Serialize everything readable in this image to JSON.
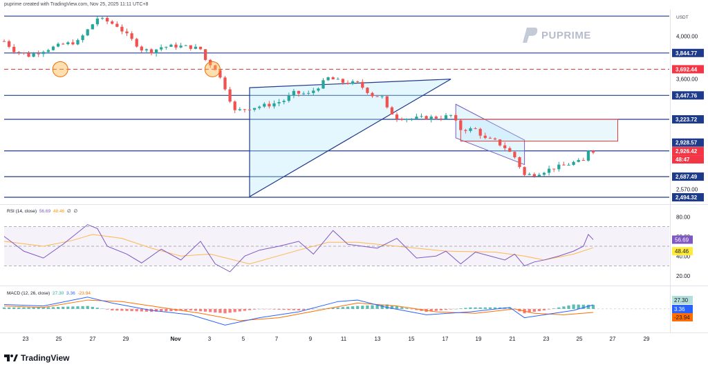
{
  "header": {
    "caption": "puprime created with TradingView.com, Nov 25, 2025 11:11 UTC+8"
  },
  "watermark": {
    "text": "PUPRIME"
  },
  "brand": {
    "text": "TradingView"
  },
  "colors": {
    "up": "#26a69a",
    "down": "#ef5350",
    "level": "#1e3a8a",
    "dashed": "#d32f2f",
    "rsi": "#7e57c2",
    "rsi_ma": "#ffb74d",
    "macd": "#2962ff",
    "signal": "#ff6d00"
  },
  "chart_data": [
    {
      "type": "candlestick",
      "currency": "USDT",
      "x_tick_labels": [
        "23",
        "25",
        "27",
        "29",
        "Nov",
        "3",
        "5",
        "7",
        "9",
        "11",
        "13",
        "15",
        "17",
        "19",
        "21",
        "23",
        "25",
        "27",
        "29"
      ],
      "y_tick_labels": [
        "4,000.00",
        "3,600.00",
        "2,570.00"
      ],
      "ylim": [
        2430,
        4250
      ],
      "horizontal_levels": [
        4190,
        3844.77,
        3447.76,
        3223.72,
        2928.57,
        2687.49,
        2494.32
      ],
      "dashed_level": 3692.44,
      "price_labels": [
        {
          "text": "3,844.77",
          "style": "level"
        },
        {
          "text": "3,692.44",
          "style": "alert"
        },
        {
          "text": "3,447.76",
          "style": "level"
        },
        {
          "text": "3,223.72",
          "style": "level"
        },
        {
          "text": "2,928.57",
          "style": "level"
        },
        {
          "text": "2,926.42",
          "style": "alert"
        },
        {
          "text": "48:47",
          "style": "alert"
        },
        {
          "text": "2,687.49",
          "style": "level"
        },
        {
          "text": "2,494.32",
          "style": "level"
        }
      ],
      "close_path": [
        [
          0,
          3955
        ],
        [
          2,
          3870
        ],
        [
          5,
          3820
        ],
        [
          8,
          3870
        ],
        [
          12,
          3925
        ],
        [
          15,
          3950
        ],
        [
          17,
          4060
        ],
        [
          19,
          4170
        ],
        [
          21,
          4140
        ],
        [
          23,
          4100
        ],
        [
          25,
          4010
        ],
        [
          28,
          3880
        ],
        [
          30,
          3860
        ],
        [
          32,
          3900
        ],
        [
          35,
          3910
        ],
        [
          38,
          3900
        ],
        [
          40,
          3880
        ],
        [
          41,
          3780
        ],
        [
          43,
          3700
        ],
        [
          45,
          3520
        ],
        [
          47,
          3300
        ],
        [
          50,
          3330
        ],
        [
          54,
          3360
        ],
        [
          57,
          3400
        ],
        [
          59,
          3470
        ],
        [
          62,
          3460
        ],
        [
          64,
          3530
        ],
        [
          66,
          3610
        ],
        [
          69,
          3570
        ],
        [
          72,
          3560
        ],
        [
          75,
          3450
        ],
        [
          77,
          3430
        ],
        [
          78,
          3320
        ],
        [
          80,
          3240
        ],
        [
          83,
          3230
        ],
        [
          86,
          3240
        ],
        [
          89,
          3240
        ],
        [
          91,
          3260
        ],
        [
          93,
          3130
        ],
        [
          96,
          3130
        ],
        [
          98,
          3040
        ],
        [
          100,
          3020
        ],
        [
          102,
          2960
        ],
        [
          104,
          2870
        ],
        [
          106,
          2700
        ],
        [
          108,
          2710
        ],
        [
          110,
          2740
        ],
        [
          112,
          2770
        ],
        [
          114,
          2790
        ],
        [
          116,
          2820
        ],
        [
          118,
          2830
        ],
        [
          119,
          2940
        ],
        [
          120,
          2930
        ]
      ],
      "series": [
        {
          "name": "Ascending triangle",
          "points": [
            [
              50,
              3520
            ],
            [
              91,
              3600
            ],
            [
              50,
              2500
            ]
          ]
        },
        {
          "name": "Descending channel",
          "points": [
            [
              92,
              3365
            ],
            [
              106,
              3030
            ],
            [
              106,
              2800
            ],
            [
              92,
              3050
            ]
          ]
        }
      ]
    },
    {
      "type": "line",
      "title": "RSI (14, close)",
      "legend_values": [
        "56.69",
        "48.46",
        "∅",
        "∅"
      ],
      "y_tick_labels": [
        "80.00",
        "60.00",
        "40.00",
        "20.00"
      ],
      "ylim": [
        10,
        90
      ],
      "bands": [
        30,
        50,
        70
      ],
      "value_labels": [
        "56.69",
        "48.46"
      ],
      "series": [
        {
          "name": "RSI",
          "x": [
            0,
            4,
            8,
            12,
            17,
            19,
            21,
            25,
            28,
            32,
            36,
            40,
            43,
            46,
            49,
            52,
            56,
            60,
            63,
            67,
            70,
            73,
            76,
            80,
            84,
            88,
            90,
            93,
            96,
            99,
            102,
            104,
            106,
            108,
            110,
            113,
            116,
            118,
            119,
            120
          ],
          "values": [
            60,
            45,
            38,
            52,
            72,
            68,
            50,
            42,
            33,
            47,
            36,
            55,
            32,
            24,
            40,
            46,
            50,
            55,
            42,
            66,
            52,
            50,
            48,
            58,
            38,
            40,
            45,
            32,
            44,
            40,
            36,
            42,
            30,
            34,
            36,
            40,
            45,
            50,
            62,
            56.69
          ]
        },
        {
          "name": "RSI-based MA",
          "x": [
            0,
            8,
            14,
            18,
            24,
            30,
            36,
            42,
            50,
            60,
            66,
            72,
            80,
            90,
            100,
            106,
            110,
            116,
            120
          ],
          "values": [
            55,
            50,
            56,
            62,
            58,
            48,
            40,
            42,
            32,
            46,
            54,
            54,
            50,
            45,
            44,
            40,
            36,
            42,
            48.46
          ]
        }
      ]
    },
    {
      "type": "line",
      "title": "MACD (12, 26, close)",
      "legend_values": [
        "27.30",
        "3.36",
        "-23.94"
      ],
      "value_labels": [
        "27.30",
        "3.36",
        "-23.94"
      ],
      "ylim": [
        -160,
        140
      ],
      "series": [
        {
          "name": "MACD",
          "x": [
            0,
            8,
            17,
            22,
            30,
            38,
            45,
            52,
            60,
            68,
            72,
            78,
            86,
            95,
            103,
            106,
            110,
            116,
            120
          ],
          "values": [
            30,
            20,
            80,
            40,
            -10,
            -40,
            -110,
            -60,
            -20,
            50,
            60,
            10,
            -40,
            -20,
            10,
            -60,
            -40,
            -10,
            27.3
          ]
        },
        {
          "name": "Signal",
          "x": [
            0,
            8,
            17,
            24,
            32,
            40,
            48,
            56,
            64,
            72,
            80,
            88,
            96,
            104,
            108,
            114,
            120
          ],
          "values": [
            20,
            10,
            60,
            50,
            10,
            -30,
            -80,
            -60,
            -10,
            40,
            20,
            -20,
            -30,
            0,
            -30,
            -40,
            -23.94
          ]
        },
        {
          "name": "Histogram",
          "x": [
            0,
            8,
            17,
            22,
            30,
            38,
            45,
            52,
            60,
            68,
            72,
            78,
            86,
            95,
            103,
            106,
            110,
            116,
            120
          ],
          "values": [
            10,
            10,
            20,
            -10,
            -20,
            -10,
            -30,
            0,
            -10,
            10,
            20,
            30,
            -20,
            10,
            10,
            -30,
            -10,
            30,
            27.3
          ]
        }
      ]
    }
  ]
}
